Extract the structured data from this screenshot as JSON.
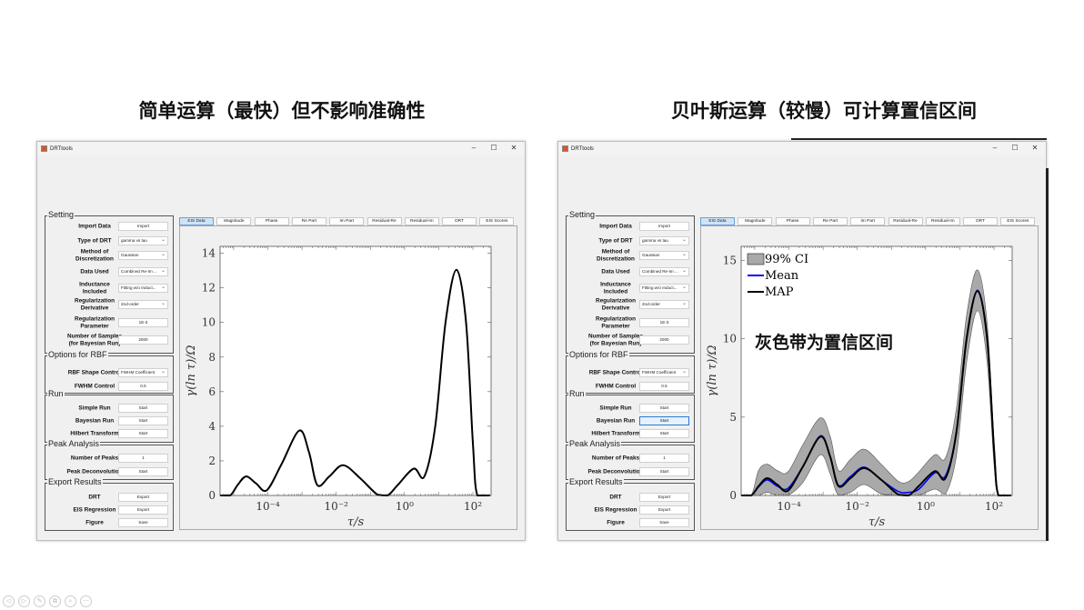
{
  "slide": {
    "titles": [
      "简单运算（最快）但不影响准确性",
      "贝叶斯运算（较慢）可计算置信区间"
    ],
    "nav_icons": [
      "previous-icon",
      "next-icon",
      "pen-icon",
      "slides-icon",
      "zoom-icon",
      "more-icon"
    ]
  },
  "app": {
    "window_title": "DRTtools",
    "window_controls": [
      "–",
      "☐",
      "✕"
    ],
    "groups": [
      {
        "title": "Setting",
        "rows": [
          {
            "label": "Import Data",
            "control": "button",
            "value": "Import"
          },
          {
            "label": "Type of DRT",
            "control": "select",
            "value": "gamma vs tau"
          },
          {
            "label": "Method of\nDiscretization",
            "control": "select",
            "value": "Gaussian"
          },
          {
            "label": "Data Used",
            "control": "select",
            "value": "Combined Re-Im ..."
          },
          {
            "label": "Inductance\nIncluded",
            "control": "select",
            "value": "Fitting w/o Induct..."
          },
          {
            "label": "Regularization\nDerivative",
            "control": "select",
            "value": "2nd-order"
          },
          {
            "label": "Regularization\nParameter",
            "control": "input",
            "value": "1E-3"
          },
          {
            "label": "Number of Samples\n(for Bayesian Run)",
            "control": "input",
            "value": "2000"
          }
        ]
      },
      {
        "title": "Options for RBF",
        "rows": [
          {
            "label": "RBF Shape Control",
            "control": "select",
            "value": "FWHM Coefficient"
          },
          {
            "label": "FWHM Control",
            "control": "input",
            "value": "0.5"
          }
        ]
      },
      {
        "title": "Run",
        "rows": [
          {
            "label": "Simple Run",
            "control": "button",
            "value": "Start"
          },
          {
            "label": "Bayesian Run",
            "control": "button",
            "value": "Start"
          },
          {
            "label": "Hilbert Transform",
            "control": "button",
            "value": "Start"
          }
        ]
      },
      {
        "title": "Peak Analysis",
        "rows": [
          {
            "label": "Number of Peaks",
            "control": "input",
            "value": "1"
          },
          {
            "label": "Peak Deconvolution",
            "control": "button",
            "value": "Start"
          }
        ]
      },
      {
        "title": "Export Results",
        "rows": [
          {
            "label": "DRT",
            "control": "button",
            "value": "Export"
          },
          {
            "label": "EIS Regression",
            "control": "button",
            "value": "Export"
          },
          {
            "label": "Figure",
            "control": "button",
            "value": "Save"
          }
        ]
      }
    ],
    "tabs": [
      "EIS Data",
      "Magnitude",
      "Phase",
      "Re Part",
      "Im Part",
      "Residual-Re",
      "Residual-Im",
      "DRT",
      "EIS Scores"
    ],
    "active_tab": "EIS Data"
  },
  "windows": [
    {
      "focused_button": null
    },
    {
      "focused_button": "Bayesian Run"
    }
  ],
  "colors": {
    "map": "#000000",
    "mean": "#0000ff",
    "ci_fill": "#a9a9a9",
    "accent": "#2a7ad4"
  },
  "chart_data": [
    {
      "type": "line",
      "xlabel": "τ/s",
      "ylabel": "γ(ln τ)/Ω",
      "x_scale": "log",
      "xlim": [
        4e-06,
        340
      ],
      "ylim": [
        0,
        14.4
      ],
      "x_ticks": [
        0.0001,
        0.01,
        1,
        100
      ],
      "x_tick_labels": [
        "10⁻⁴",
        "10⁻²",
        "10⁰",
        "10²"
      ],
      "y_ticks": [
        0,
        2,
        4,
        6,
        8,
        10,
        12,
        14
      ],
      "y_tick_labels": [
        "0",
        "2",
        "4",
        "6",
        "8",
        "10",
        "12",
        "14"
      ],
      "grid": false,
      "x": [
        4e-06,
        7.9e-06,
        1.3e-05,
        2.3e-05,
        4.5e-05,
        9.3e-05,
        0.00025,
        0.00083,
        0.0016,
        0.0028,
        0.0063,
        0.016,
        0.05,
        0.16,
        0.32,
        0.63,
        1.86,
        3.8,
        7.9,
        15.8,
        33,
        63,
        100,
        135,
        316
      ],
      "series": [
        {
          "role": "map",
          "values": [
            0,
            0,
            0.6,
            1.1,
            0.7,
            0.3,
            1.8,
            3.75,
            2.5,
            0.6,
            1.1,
            1.75,
            1.0,
            0.05,
            0,
            0.6,
            1.55,
            1.1,
            4,
            10,
            13.05,
            10,
            3,
            0,
            0
          ]
        }
      ]
    },
    {
      "type": "line",
      "xlabel": "τ/s",
      "ylabel": "γ(ln τ)/Ω",
      "x_scale": "log",
      "xlim": [
        4e-06,
        340
      ],
      "ylim": [
        0,
        15.9
      ],
      "x_ticks": [
        0.0001,
        0.01,
        1,
        100
      ],
      "x_tick_labels": [
        "10⁻⁴",
        "10⁻²",
        "10⁰",
        "10²"
      ],
      "y_ticks": [
        0,
        5,
        10,
        15
      ],
      "y_tick_labels": [
        "0",
        "5",
        "10",
        "15"
      ],
      "grid": false,
      "legend_position": "top-left",
      "annotation": "灰色带为置信区间",
      "x": [
        4e-06,
        7.9e-06,
        1.3e-05,
        2.3e-05,
        4.5e-05,
        9.3e-05,
        0.00025,
        0.00083,
        0.0016,
        0.0028,
        0.0063,
        0.016,
        0.05,
        0.16,
        0.32,
        0.63,
        1.86,
        3.8,
        7.9,
        15.8,
        33,
        63,
        100,
        135,
        316
      ],
      "band": {
        "name": "99% CI",
        "upper": [
          0,
          0,
          1.6,
          2.0,
          1.6,
          1.5,
          3.2,
          4.95,
          3.8,
          1.6,
          2.3,
          2.95,
          2.0,
          0.9,
          0.9,
          1.5,
          2.6,
          2.4,
          5.5,
          11.5,
          14.4,
          11,
          3.5,
          0,
          0
        ],
        "lower": [
          0,
          0,
          0,
          0.2,
          0,
          0,
          0.8,
          2.6,
          1.4,
          0,
          0.2,
          0.7,
          0.1,
          0,
          0,
          0,
          0.4,
          0.1,
          2.5,
          8.5,
          11.8,
          8.5,
          2,
          0,
          0
        ]
      },
      "series": [
        {
          "name": "Mean",
          "role": "mean",
          "values": [
            0,
            0,
            0.55,
            1.0,
            0.6,
            0.45,
            1.8,
            3.8,
            2.5,
            0.65,
            1.2,
            1.8,
            1.0,
            0.25,
            0.2,
            0.4,
            1.45,
            1.25,
            4,
            10,
            13.1,
            10,
            3,
            0,
            0
          ]
        },
        {
          "name": "MAP",
          "role": "map",
          "values": [
            0,
            0,
            0.6,
            1.1,
            0.7,
            0.3,
            1.8,
            3.75,
            2.5,
            0.6,
            1.1,
            1.75,
            1.0,
            0.05,
            0,
            0.6,
            1.55,
            1.1,
            4,
            10,
            13.05,
            10,
            3,
            0,
            0
          ]
        }
      ]
    }
  ]
}
